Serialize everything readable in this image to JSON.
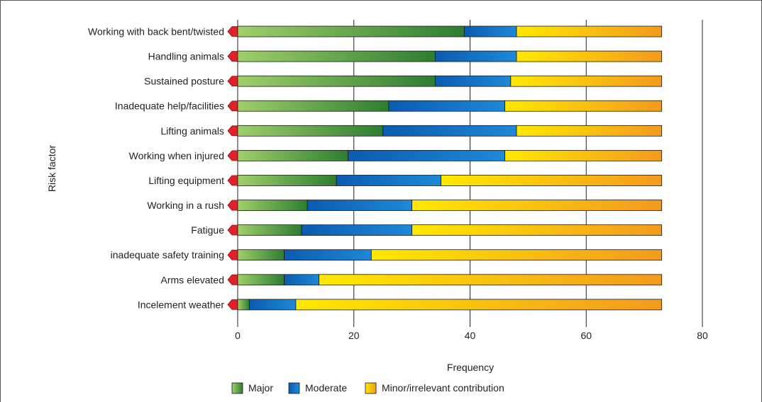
{
  "chart_data": {
    "type": "bar",
    "orientation": "horizontal",
    "stacked": true,
    "categories": [
      "Working with back bent/twisted",
      "Handling animals",
      "Sustained posture",
      "Inadequate help/facilities",
      "Lifting animals",
      "Working when injured",
      "Lifting equipment",
      "Working in a rush",
      "Fatigue",
      "inadequate safety training",
      "Arms elevated",
      "Incelement weather"
    ],
    "series": [
      {
        "name": "Major",
        "color": "#3a8a3a",
        "values": [
          39,
          34,
          34,
          26,
          25,
          19,
          17,
          12,
          11,
          8,
          8,
          2
        ]
      },
      {
        "name": "Moderate",
        "color": "#1565b8",
        "values": [
          9,
          14,
          13,
          20,
          23,
          27,
          18,
          18,
          19,
          15,
          6,
          8
        ]
      },
      {
        "name": "Minor/irrelevant contribution",
        "color": "#f5b400",
        "values": [
          25,
          25,
          26,
          27,
          25,
          27,
          38,
          43,
          43,
          50,
          59,
          63
        ]
      }
    ],
    "xlabel": "Frequency",
    "ylabel": "Risk factor",
    "xlim": [
      0,
      80
    ],
    "xticks": [
      0,
      20,
      40,
      60,
      80
    ],
    "grid": "vertical",
    "legend": "bottom"
  }
}
